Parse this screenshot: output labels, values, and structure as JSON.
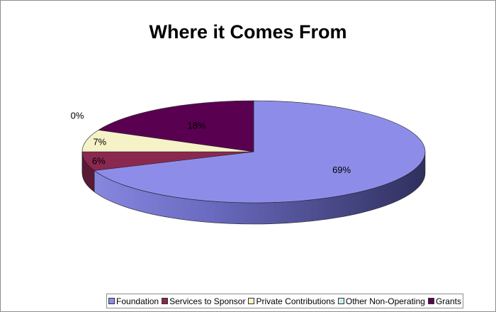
{
  "chart_data": {
    "type": "pie",
    "title": "Where it Comes From",
    "categories": [
      "Foundation",
      "Services to Sponsor",
      "Private Contributions",
      "Other Non-Operating",
      "Grants"
    ],
    "values": [
      69,
      6,
      7,
      0,
      18
    ],
    "labels": [
      "69%",
      "6%",
      "7%",
      "0%",
      "18%"
    ],
    "colors": [
      "#8d8de9",
      "#8b2850",
      "#f5f2c8",
      "#cdeff2",
      "#5a0050"
    ],
    "side_colors": [
      "#4a4a88",
      "#5a1934",
      "#b8b38a",
      "#9fc8cc",
      "#3a0034"
    ],
    "legend_position": "bottom",
    "three_d": true
  }
}
